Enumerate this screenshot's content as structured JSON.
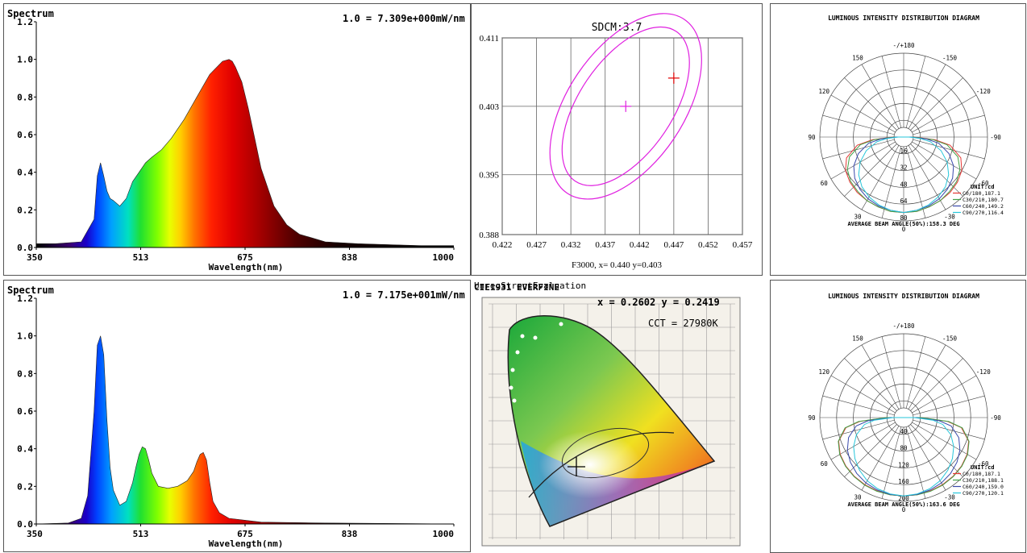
{
  "spectrum_top": {
    "title": "Spectrum",
    "scale_note": "1.0 = 7.309e+000mW/nm",
    "xlabel": "Wavelength(nm)",
    "xticks": [
      "350",
      "513",
      "675",
      "838",
      "1000"
    ],
    "yticks": [
      "0.0",
      "0.2",
      "0.4",
      "0.6",
      "0.8",
      "1.0",
      "1.2"
    ]
  },
  "spectrum_bottom": {
    "title": "Spectrum",
    "scale_note": "1.0 = 7.175e+001mW/nm",
    "xlabel": "Wavelength(nm)",
    "xticks": [
      "350",
      "513",
      "675",
      "838",
      "1000"
    ],
    "yticks": [
      "0.0",
      "0.2",
      "0.4",
      "0.6",
      "0.8",
      "1.0",
      "1.2"
    ]
  },
  "sdcm": {
    "title": "SDCM:3.7",
    "footer": "F3000, x= 0.440 y=0.403",
    "xticks": [
      "0.422",
      "0.427",
      "0.432",
      "0.437",
      "0.442",
      "0.447",
      "0.452",
      "0.457"
    ],
    "yticks": [
      "0.411",
      "0.403",
      "0.395",
      "0.388"
    ]
  },
  "cie": {
    "header": "UnregStrectEvaluation",
    "header_overlay": "CIE1931 EVERFINE",
    "coords": "x = 0.2602 y = 0.2419",
    "cct": "CCT = 27980K"
  },
  "polar_top": {
    "title": "LUMINOUS INTENSITY DISTRIBUTION DIAGRAM",
    "angle_labels": [
      "-/+180",
      "-150",
      "150",
      "-120",
      "120",
      "-90",
      "90",
      "-60",
      "60",
      "-30",
      "30",
      "0"
    ],
    "radial_labels": [
      "16",
      "32",
      "48",
      "64",
      "80"
    ],
    "unit": "UNIT:cd",
    "legend": [
      "C0/180,187.1",
      "C30/210,180.7",
      "C60/240,149.2",
      "C90/270,116.4"
    ],
    "beam_angle": "AVERAGE BEAM ANGLE(50%):158.3 DEG"
  },
  "polar_bottom": {
    "title": "LUMINOUS INTENSITY DISTRIBUTION DIAGRAM",
    "angle_labels": [
      "-/+180",
      "-150",
      "150",
      "-120",
      "120",
      "-90",
      "90",
      "-60",
      "60",
      "-30",
      "30",
      "0"
    ],
    "radial_labels": [
      "40",
      "80",
      "120",
      "160",
      "200"
    ],
    "unit": "UNIT:cd",
    "legend": [
      "C0/180,187.1",
      "C30/210,188.1",
      "C60/240,159.0",
      "C90/270,120.1"
    ],
    "beam_angle": "AVERAGE BEAM ANGLE(50%):163.6 DEG"
  },
  "colors": {
    "c0": "#e53935",
    "c30": "#43a047",
    "c60": "#3949ab",
    "c90": "#26c6da",
    "sdcm": "#e020e0"
  },
  "chart_data": [
    {
      "type": "area",
      "title": "Spectrum",
      "xlabel": "Wavelength(nm)",
      "xlim": [
        350,
        1000
      ],
      "ylim": [
        0,
        1.2
      ],
      "x": [
        350,
        380,
        420,
        440,
        445,
        450,
        455,
        460,
        465,
        470,
        480,
        490,
        500,
        510,
        520,
        530,
        545,
        560,
        580,
        600,
        620,
        640,
        650,
        655,
        660,
        670,
        680,
        690,
        700,
        720,
        740,
        760,
        780,
        800,
        850,
        900,
        950,
        1000
      ],
      "y": [
        0.02,
        0.02,
        0.03,
        0.15,
        0.38,
        0.45,
        0.38,
        0.3,
        0.26,
        0.25,
        0.22,
        0.26,
        0.35,
        0.4,
        0.45,
        0.48,
        0.52,
        0.58,
        0.68,
        0.8,
        0.92,
        0.99,
        1.0,
        0.99,
        0.96,
        0.88,
        0.74,
        0.58,
        0.42,
        0.22,
        0.12,
        0.07,
        0.05,
        0.03,
        0.02,
        0.015,
        0.01,
        0.01
      ]
    },
    {
      "type": "area",
      "title": "Spectrum",
      "xlabel": "Wavelength(nm)",
      "xlim": [
        350,
        1000
      ],
      "ylim": [
        0,
        1.2
      ],
      "x": [
        350,
        400,
        420,
        430,
        440,
        445,
        450,
        455,
        460,
        465,
        470,
        480,
        490,
        500,
        505,
        510,
        515,
        520,
        525,
        530,
        540,
        555,
        570,
        585,
        595,
        600,
        605,
        610,
        615,
        620,
        625,
        635,
        650,
        700,
        800,
        1000
      ],
      "y": [
        0,
        0.005,
        0.03,
        0.15,
        0.6,
        0.95,
        1.0,
        0.9,
        0.55,
        0.3,
        0.18,
        0.1,
        0.12,
        0.22,
        0.3,
        0.37,
        0.41,
        0.4,
        0.34,
        0.27,
        0.2,
        0.19,
        0.2,
        0.23,
        0.28,
        0.33,
        0.37,
        0.38,
        0.34,
        0.22,
        0.12,
        0.06,
        0.03,
        0.01,
        0.005,
        0
      ]
    },
    {
      "type": "scatter",
      "title": "SDCM:3.7",
      "xlim": [
        0.422,
        0.457
      ],
      "ylim": [
        0.388,
        0.411
      ],
      "target_point": {
        "x": 0.44,
        "y": 0.403
      },
      "measured_point": {
        "x": 0.447,
        "y": 0.4063
      }
    },
    {
      "type": "line",
      "title": "LUMINOUS INTENSITY DISTRIBUTION DIAGRAM",
      "rmax": 80,
      "angles_deg": [
        0,
        10,
        20,
        30,
        40,
        50,
        60,
        70,
        80,
        85,
        90
      ],
      "series": [
        {
          "name": "C0/180,187.1",
          "values": [
            72,
            72,
            71,
            70,
            69,
            67,
            64,
            58,
            45,
            30,
            10
          ]
        },
        {
          "name": "C30/210,180.7",
          "values": [
            72,
            72,
            71,
            70,
            68,
            66,
            62,
            55,
            42,
            28,
            9
          ]
        },
        {
          "name": "C60/240,149.2",
          "values": [
            72,
            71,
            70,
            68,
            65,
            61,
            55,
            46,
            34,
            22,
            7
          ]
        },
        {
          "name": "C90/270,116.4",
          "values": [
            72,
            71,
            69,
            66,
            62,
            56,
            48,
            38,
            26,
            16,
            5
          ]
        }
      ]
    },
    {
      "type": "line",
      "title": "LUMINOUS INTENSITY DISTRIBUTION DIAGRAM",
      "rmax": 200,
      "angles_deg": [
        0,
        10,
        20,
        30,
        40,
        50,
        60,
        70,
        80,
        85,
        90
      ],
      "series": [
        {
          "name": "C0/180,187.1",
          "values": [
            187,
            187,
            186,
            185,
            183,
            180,
            175,
            165,
            140,
            105,
            40
          ]
        },
        {
          "name": "C30/210,188.1",
          "values": [
            187,
            187,
            187,
            186,
            184,
            181,
            176,
            166,
            142,
            108,
            42
          ]
        },
        {
          "name": "C60/240,159.0",
          "values": [
            187,
            186,
            184,
            180,
            174,
            166,
            155,
            140,
            115,
            85,
            30
          ]
        },
        {
          "name": "C90/270,120.1",
          "values": [
            187,
            185,
            181,
            174,
            164,
            152,
            138,
            120,
            95,
            70,
            25
          ]
        }
      ]
    }
  ]
}
